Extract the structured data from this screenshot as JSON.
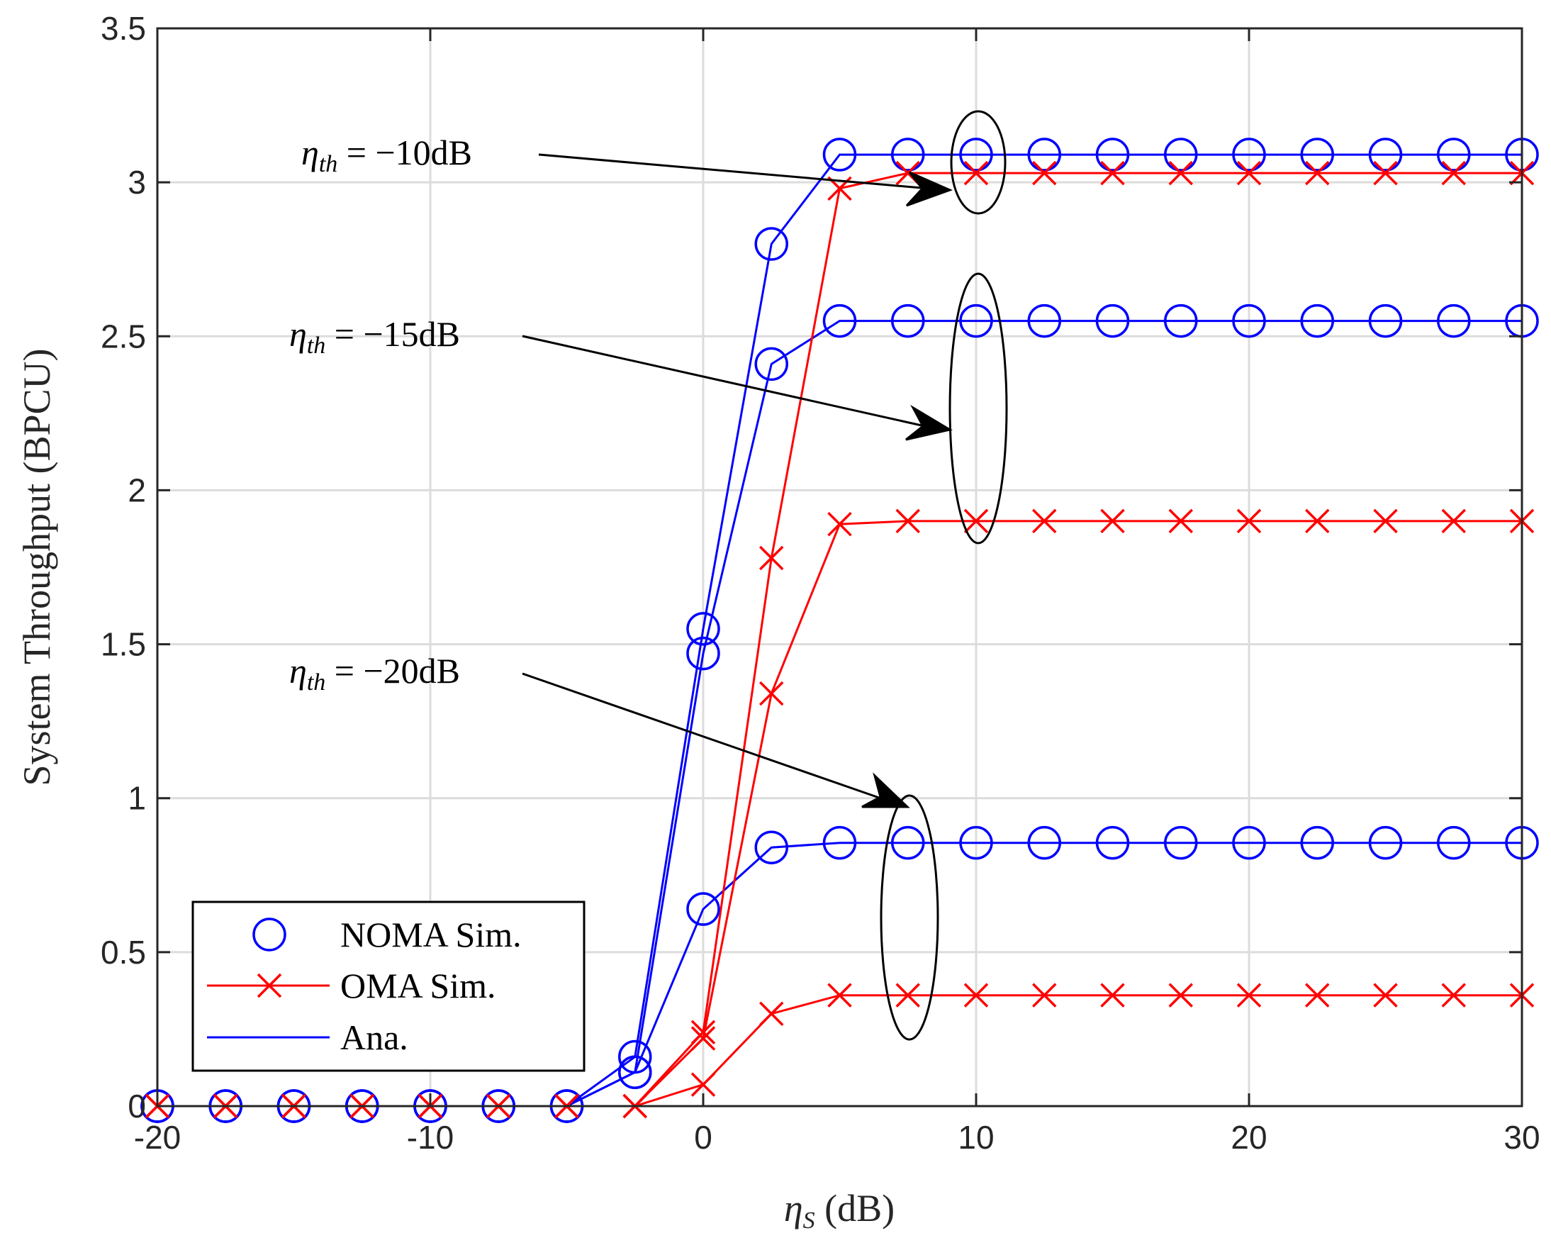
{
  "chart_data": {
    "type": "line",
    "title": "",
    "xlabel": "ηS (dB)",
    "ylabel": "System Throughput (BPCU)",
    "xlim": [
      -20,
      30
    ],
    "ylim": [
      0,
      3.5
    ],
    "xticks": [
      -20,
      -10,
      0,
      10,
      20,
      30
    ],
    "yticks": [
      0,
      0.5,
      1,
      1.5,
      2,
      2.5,
      3,
      3.5
    ],
    "xtick_labels": [
      "-20",
      "-10",
      "0",
      "10",
      "20",
      "30"
    ],
    "ytick_labels": [
      "0",
      "0.5",
      "1",
      "1.5",
      "2",
      "2.5",
      "3",
      "3.5"
    ],
    "grid": true,
    "legend_position": "bottom-left",
    "legend": [
      {
        "label": "NOMA Sim.",
        "marker": "circle",
        "color": "#0000ff",
        "line": false
      },
      {
        "label": "OMA Sim.",
        "marker": "x",
        "color": "#ff0000",
        "line": true
      },
      {
        "label": "Ana.",
        "marker": "none",
        "color": "#0000ff",
        "line": true
      }
    ],
    "x": [
      -20,
      -17.5,
      -15,
      -12.5,
      -10,
      -7.5,
      -5,
      -2.5,
      0,
      2.5,
      5,
      7.5,
      10,
      12.5,
      15,
      17.5,
      20,
      22.5,
      25,
      27.5,
      30
    ],
    "series": [
      {
        "name": "NOMA η_th = -10dB",
        "kind": "noma",
        "color": "#0000ff",
        "values": [
          0,
          0,
          0,
          0,
          0,
          0,
          0,
          0.16,
          1.55,
          2.8,
          3.09,
          3.09,
          3.09,
          3.09,
          3.09,
          3.09,
          3.09,
          3.09,
          3.09,
          3.09,
          3.09
        ]
      },
      {
        "name": "NOMA η_th = -15dB",
        "kind": "noma",
        "color": "#0000ff",
        "values": [
          0,
          0,
          0,
          0,
          0,
          0,
          0,
          0.11,
          1.47,
          2.41,
          2.55,
          2.55,
          2.55,
          2.55,
          2.55,
          2.55,
          2.55,
          2.55,
          2.55,
          2.55,
          2.55
        ]
      },
      {
        "name": "NOMA η_th = -20dB",
        "kind": "noma",
        "color": "#0000ff",
        "values": [
          0,
          0,
          0,
          0,
          0,
          0,
          0,
          0.11,
          0.64,
          0.84,
          0.855,
          0.855,
          0.855,
          0.855,
          0.855,
          0.855,
          0.855,
          0.855,
          0.855,
          0.855,
          0.855
        ]
      },
      {
        "name": "OMA η_th = -10dB",
        "kind": "oma",
        "color": "#ff0000",
        "values": [
          0,
          0,
          0,
          0,
          0,
          0,
          0,
          0,
          0.24,
          1.78,
          2.98,
          3.03,
          3.03,
          3.03,
          3.03,
          3.03,
          3.03,
          3.03,
          3.03,
          3.03,
          3.03
        ]
      },
      {
        "name": "OMA η_th = -15dB",
        "kind": "oma",
        "color": "#ff0000",
        "values": [
          0,
          0,
          0,
          0,
          0,
          0,
          0,
          0,
          0.22,
          1.34,
          1.89,
          1.9,
          1.9,
          1.9,
          1.9,
          1.9,
          1.9,
          1.9,
          1.9,
          1.9,
          1.9
        ]
      },
      {
        "name": "OMA η_th = -20dB",
        "kind": "oma",
        "color": "#ff0000",
        "values": [
          0,
          0,
          0,
          0,
          0,
          0,
          0,
          0,
          0.07,
          0.3,
          0.36,
          0.36,
          0.36,
          0.36,
          0.36,
          0.36,
          0.36,
          0.36,
          0.36,
          0.36,
          0.36
        ]
      }
    ],
    "annotations": [
      {
        "text": "η_th = −10dB",
        "target_x": 10,
        "target_y": 3.06
      },
      {
        "text": "η_th = −15dB",
        "target_x": 10,
        "target_y": 2.2
      },
      {
        "text": "η_th = −20dB",
        "target_x": 7.5,
        "target_y": 0.98
      }
    ]
  }
}
